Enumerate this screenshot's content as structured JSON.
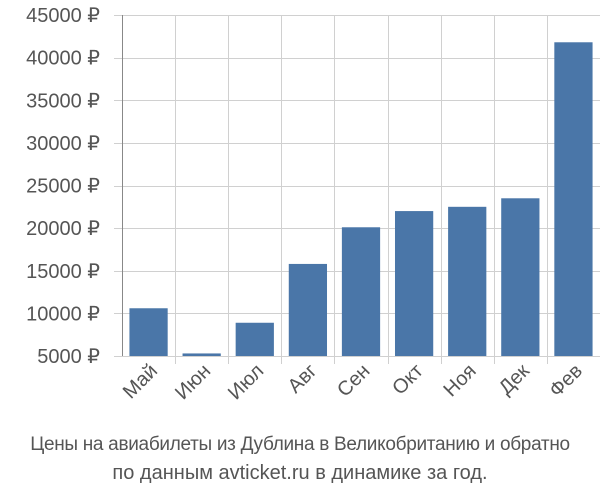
{
  "chart_data": {
    "type": "bar",
    "categories": [
      "Май",
      "Июн",
      "Июл",
      "Авг",
      "Сен",
      "Окт",
      "Ноя",
      "Дек",
      "Фев"
    ],
    "values": [
      10600,
      5300,
      8900,
      15800,
      20100,
      22000,
      22500,
      23500,
      41800
    ],
    "ylim": [
      5000,
      45000
    ],
    "yticks": [
      5000,
      10000,
      15000,
      20000,
      25000,
      30000,
      35000,
      40000,
      45000
    ],
    "ytick_suffix": " ₽",
    "grid": true,
    "bar_color": "#4a76a8"
  },
  "caption": {
    "line1": "Цены на авиабилеты из Дублина в Великобританию и обратно",
    "line2": "по данным avticket.ru в динамике за год."
  }
}
